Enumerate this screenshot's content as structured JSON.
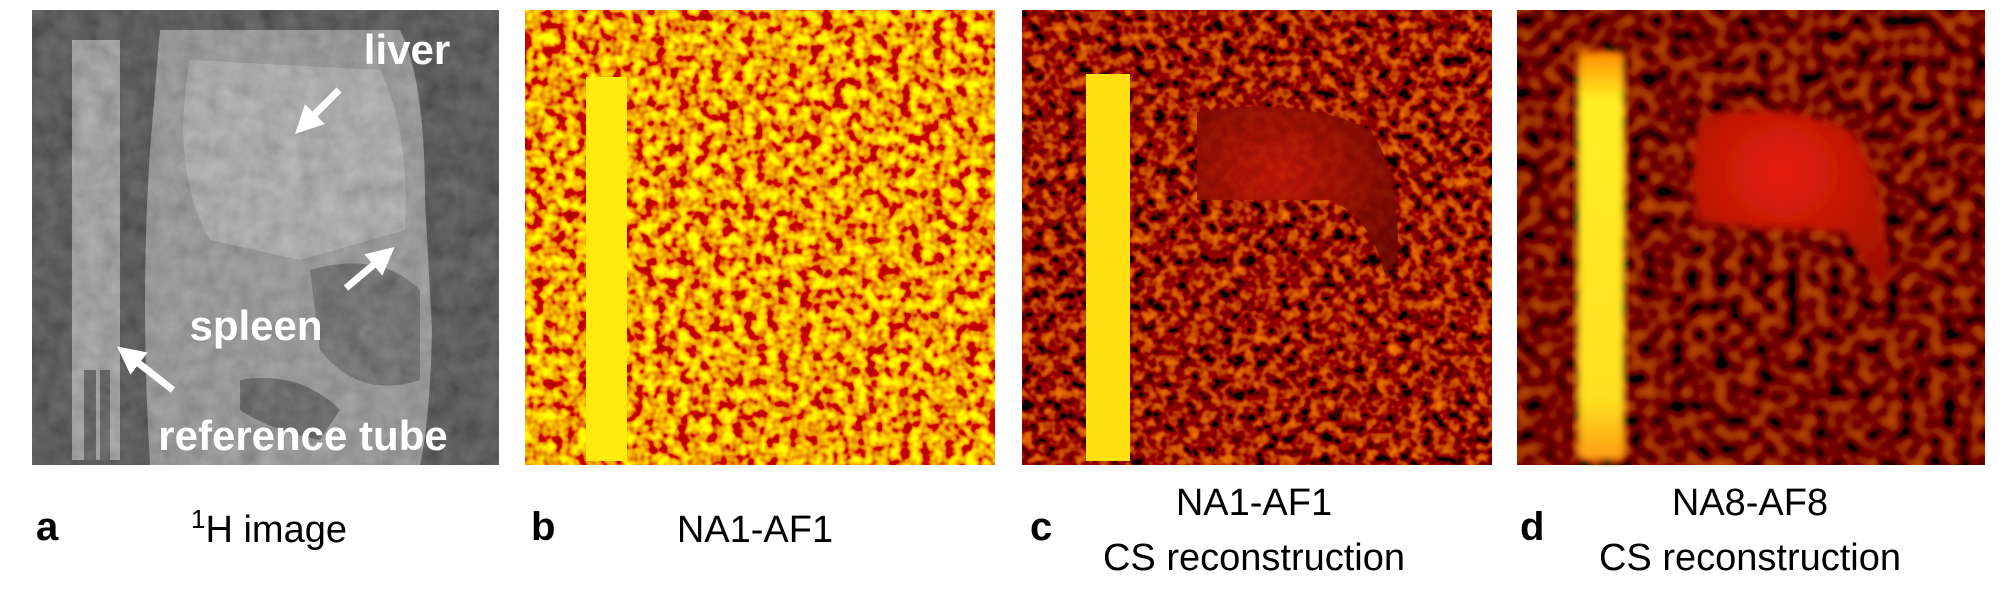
{
  "panels": [
    {
      "letter": "a",
      "caption_sup": "1",
      "caption_lines": [
        "H image"
      ]
    },
    {
      "letter": "b",
      "caption_lines": [
        "NA1-AF1"
      ]
    },
    {
      "letter": "c",
      "caption_lines": [
        "NA1-AF1",
        "CS reconstruction"
      ]
    },
    {
      "letter": "d",
      "caption_lines": [
        "NA8-AF8",
        "CS reconstruction"
      ]
    }
  ],
  "annotations": [
    "liver",
    "spleen",
    "reference tube"
  ]
}
